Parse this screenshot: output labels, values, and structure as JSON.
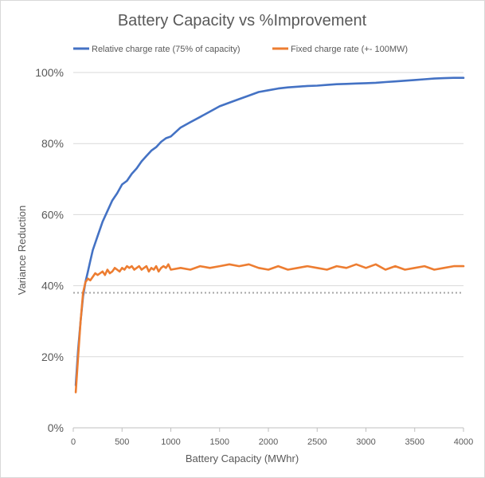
{
  "chart_data": {
    "type": "line",
    "title": "Battery Capacity vs %Improvement",
    "xlabel": "Battery Capacity (MWhr)",
    "ylabel": "Variance Reduction",
    "xlim": [
      0,
      4000
    ],
    "ylim": [
      0,
      100
    ],
    "x_ticks": [
      0,
      500,
      1000,
      1500,
      2000,
      2500,
      3000,
      3500,
      4000
    ],
    "x_tick_labels": [
      "0",
      "500",
      "1000",
      "1500",
      "2000",
      "2500",
      "3000",
      "3500",
      "4000"
    ],
    "y_ticks": [
      0,
      20,
      40,
      60,
      80,
      100
    ],
    "y_tick_labels": [
      "0%",
      "20%",
      "40%",
      "60%",
      "80%",
      "100%"
    ],
    "grid": true,
    "legend_position": "top",
    "reference_line": {
      "y": 38,
      "style": "dotted",
      "color": "#a6a6a6"
    },
    "series": [
      {
        "name": "Relative charge rate (75% of capacity)",
        "color": "#4472c4",
        "x": [
          25,
          50,
          75,
          100,
          125,
          150,
          175,
          200,
          250,
          300,
          350,
          400,
          450,
          500,
          550,
          600,
          650,
          700,
          750,
          800,
          850,
          900,
          950,
          1000,
          1100,
          1200,
          1300,
          1400,
          1500,
          1600,
          1700,
          1800,
          1900,
          2000,
          2100,
          2200,
          2300,
          2400,
          2500,
          2600,
          2700,
          2800,
          2900,
          3000,
          3100,
          3200,
          3300,
          3400,
          3500,
          3600,
          3700,
          3800,
          3900,
          4000
        ],
        "values": [
          12,
          22,
          30,
          37,
          41,
          44,
          47,
          50,
          54,
          58,
          61,
          64,
          66,
          68.5,
          69.5,
          71.5,
          73,
          75,
          76.5,
          78,
          79,
          80.5,
          81.5,
          82,
          84.5,
          86,
          87.5,
          89,
          90.5,
          91.5,
          92.5,
          93.5,
          94.5,
          95,
          95.5,
          95.8,
          96,
          96.2,
          96.3,
          96.5,
          96.7,
          96.8,
          96.9,
          97,
          97.1,
          97.3,
          97.5,
          97.7,
          97.9,
          98.1,
          98.3,
          98.4,
          98.5,
          98.5
        ]
      },
      {
        "name": "Fixed charge rate (+- 100MW)",
        "color": "#ed7d31",
        "x": [
          25,
          50,
          75,
          100,
          125,
          150,
          175,
          200,
          225,
          250,
          275,
          300,
          325,
          350,
          375,
          400,
          425,
          450,
          475,
          500,
          525,
          550,
          575,
          600,
          625,
          650,
          675,
          700,
          725,
          750,
          775,
          800,
          825,
          850,
          875,
          900,
          925,
          950,
          975,
          1000,
          1100,
          1200,
          1300,
          1400,
          1500,
          1600,
          1700,
          1800,
          1900,
          2000,
          2100,
          2200,
          2300,
          2400,
          2500,
          2600,
          2700,
          2800,
          2900,
          3000,
          3100,
          3200,
          3300,
          3400,
          3500,
          3600,
          3700,
          3800,
          3900,
          4000
        ],
        "values": [
          10,
          20,
          30,
          38,
          41,
          42,
          41.5,
          42.5,
          43.5,
          43,
          43.5,
          44,
          43,
          44.5,
          43.5,
          44,
          45,
          44.5,
          44,
          45,
          44.5,
          45.5,
          45,
          45.5,
          44.5,
          45,
          45.5,
          44.5,
          45,
          45.5,
          44,
          45,
          44.5,
          45.5,
          44,
          45,
          45.5,
          45,
          46,
          44.5,
          45,
          44.5,
          45.5,
          45,
          45.5,
          46,
          45.5,
          46,
          45,
          44.5,
          45.5,
          44.5,
          45,
          45.5,
          45,
          44.5,
          45.5,
          45,
          46,
          45,
          46,
          44.5,
          45.5,
          44.5,
          45,
          45.5,
          44.5,
          45,
          45.5,
          45.5
        ]
      }
    ]
  }
}
